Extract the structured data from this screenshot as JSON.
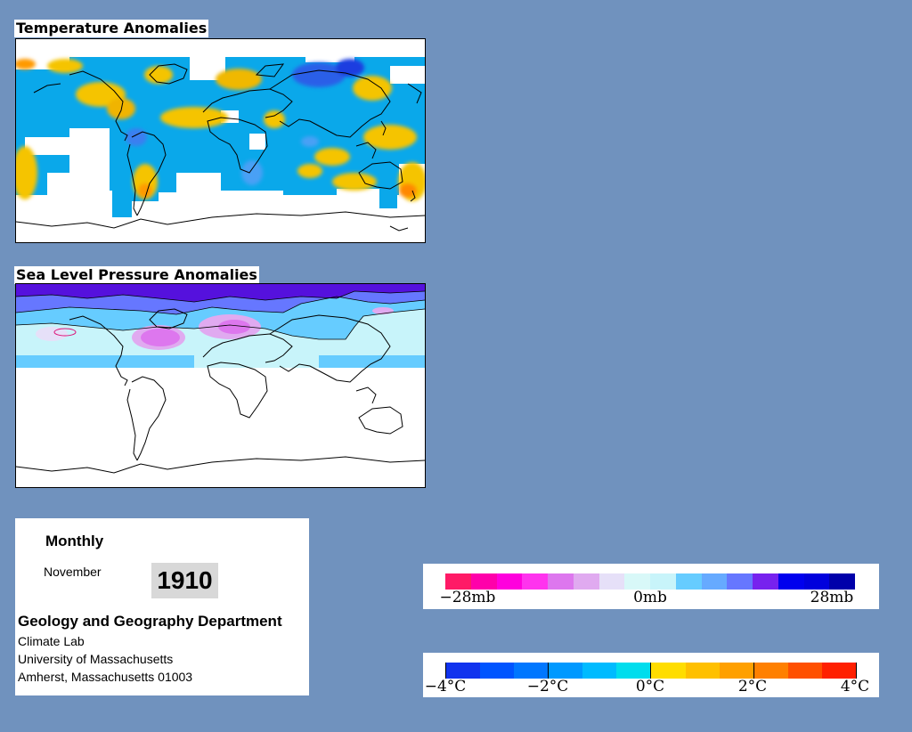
{
  "temperature_map": {
    "title": "Temperature Anomalies"
  },
  "pressure_map": {
    "title": "Sea Level Pressure Anomalies"
  },
  "info": {
    "mode": "Monthly",
    "month": "November",
    "year": "1910",
    "department": "Geology and Geography Department",
    "lab": "Climate Lab",
    "university": "University of Massachusetts",
    "address": "Amherst, Massachusetts 01003"
  },
  "pressure_legend": {
    "colors": [
      "#ff1a66",
      "#ff00aa",
      "#ff00dd",
      "#ff33ee",
      "#dd77ee",
      "#e0aaf0",
      "#e6e0f8",
      "#d8f8f8",
      "#c8f4fa",
      "#66ccff",
      "#66aaff",
      "#6677ff",
      "#7722ee",
      "#0000ee",
      "#0000dd",
      "#0000aa"
    ],
    "labels": [
      "−28mb",
      "0mb",
      "28mb"
    ]
  },
  "temperature_legend": {
    "colors": [
      "#1133ee",
      "#0055ff",
      "#0077ff",
      "#0099ff",
      "#00bbff",
      "#00dded",
      "#ffdd00",
      "#ffc000",
      "#ffa000",
      "#ff8000",
      "#ff5000",
      "#ff2000"
    ],
    "labels": [
      "−4°C",
      "−2°C",
      "0°C",
      "2°C",
      "4°C"
    ]
  },
  "colors": {
    "background": "#7092be",
    "temp_cold": "#00aaee",
    "temp_warm": "#ffbb00",
    "pressure_high": "#5511dd",
    "pressure_low": "#dd77ee"
  }
}
